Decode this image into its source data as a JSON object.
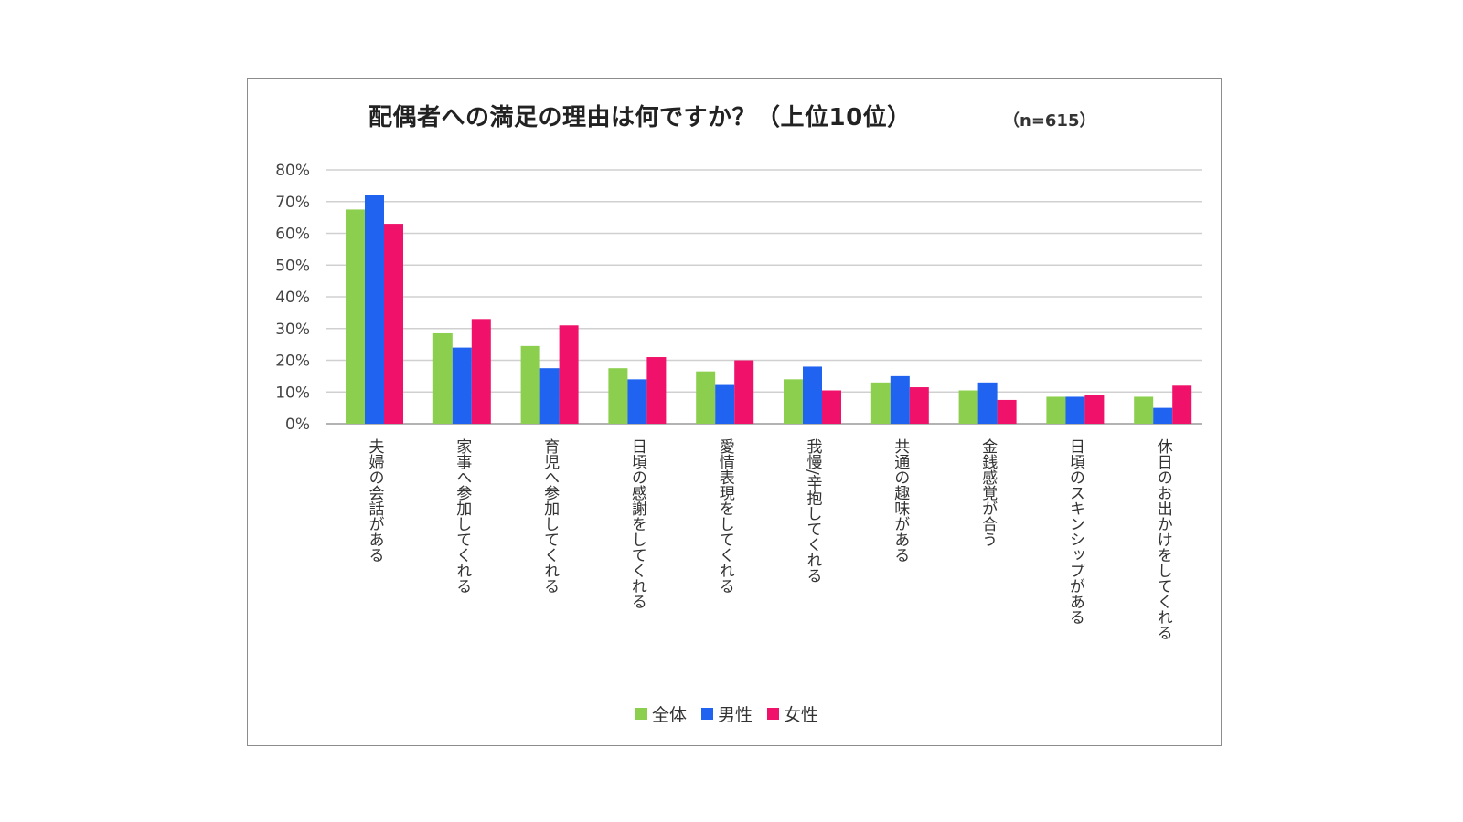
{
  "chart_data": {
    "type": "bar",
    "title": "配偶者への満足の理由は何ですか？（上位10位）",
    "annotation": "（n=615）",
    "ylim": [
      0,
      80
    ],
    "y_ticks": [
      "0%",
      "10%",
      "20%",
      "30%",
      "40%",
      "50%",
      "60%",
      "70%",
      "80%"
    ],
    "grid": true,
    "legend_position": "bottom",
    "categories": [
      "夫婦の会話がある",
      "家事へ参加してくれる",
      "育児へ参加してくれる",
      "日頃の感謝をしてくれる",
      "愛情表現をしてくれる",
      "我慢/辛抱してくれる",
      "共通の趣味がある",
      "金銭感覚が合う",
      "日頃のスキンシップがある",
      "休日のお出かけをしてくれる"
    ],
    "series": [
      {
        "name": "全体",
        "color": "#8ccf4e",
        "values": [
          67.5,
          28.5,
          24.5,
          17.5,
          16.5,
          14,
          13,
          10.5,
          8.5,
          8.5
        ]
      },
      {
        "name": "男性",
        "color": "#1f63f0",
        "values": [
          72,
          24,
          17.5,
          14,
          12.5,
          18,
          15,
          13,
          8.5,
          5
        ]
      },
      {
        "name": "女性",
        "color": "#f0126a",
        "values": [
          63,
          33,
          31,
          21,
          20,
          10.5,
          11.5,
          7.5,
          9,
          12
        ]
      }
    ]
  }
}
